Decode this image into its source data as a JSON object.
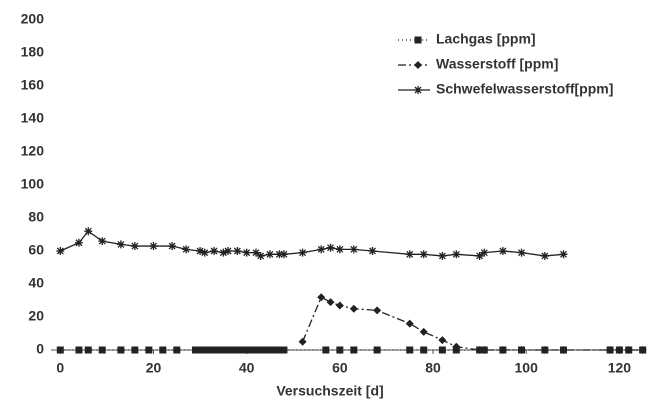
{
  "chart_data": {
    "type": "line",
    "xlabel": "Versuchszeit [d]",
    "xlim": [
      -2,
      127
    ],
    "xticks": [
      0,
      20,
      40,
      60,
      80,
      100,
      120
    ],
    "ylim": [
      0,
      200
    ],
    "yticks": [
      0,
      20,
      40,
      60,
      80,
      100,
      120,
      140,
      160,
      180,
      200
    ],
    "series": [
      {
        "name": "Lachgas [ppm]",
        "color": "#222222",
        "marker": "square",
        "dash": "1 3",
        "x": [
          0,
          4,
          6,
          9,
          13,
          16,
          19,
          22,
          25,
          29,
          30,
          31,
          32,
          33,
          34,
          35,
          36,
          37,
          38,
          39,
          40,
          41,
          42,
          43,
          44,
          45,
          46,
          47,
          48,
          57,
          60,
          63,
          68,
          75,
          78,
          82,
          85,
          90,
          91,
          95,
          99,
          104,
          108,
          118,
          120,
          122,
          125
        ],
        "values": [
          0,
          0,
          0,
          0,
          0,
          0,
          0,
          0,
          0,
          0,
          0,
          0,
          0,
          0,
          0,
          0,
          0,
          0,
          0,
          0,
          0,
          0,
          0,
          0,
          0,
          0,
          0,
          0,
          0,
          0,
          0,
          0,
          0,
          0,
          0,
          0,
          0,
          0,
          0,
          0,
          0,
          0,
          0,
          0,
          0,
          0,
          0
        ]
      },
      {
        "name": "Wasserstoff [ppm]",
        "color": "#222222",
        "marker": "diamond",
        "dash": "8 3 2 3",
        "x": [
          52,
          56,
          58,
          60,
          63,
          68,
          75,
          78,
          82,
          85,
          90,
          91,
          95,
          99,
          104,
          108,
          118,
          120,
          122,
          125
        ],
        "values": [
          5,
          32,
          29,
          27,
          25,
          24,
          16,
          11,
          6,
          2,
          0,
          0,
          0,
          0,
          0,
          0,
          0,
          0,
          0,
          0
        ]
      },
      {
        "name": "Schwefelwasserstoff[ppm]",
        "color": "#222222",
        "marker": "star",
        "dash": "none",
        "x": [
          0,
          4,
          6,
          9,
          13,
          16,
          20,
          24,
          27,
          30,
          31,
          33,
          35,
          36,
          38,
          40,
          42,
          43,
          45,
          47,
          48,
          52,
          56,
          58,
          60,
          63,
          67,
          75,
          78,
          82,
          85,
          90,
          91,
          95,
          99,
          104,
          108
        ],
        "values": [
          60,
          65,
          72,
          66,
          64,
          63,
          63,
          63,
          61,
          60,
          59,
          60,
          59,
          60,
          60,
          59,
          59,
          57,
          58,
          58,
          58,
          59,
          61,
          62,
          61,
          61,
          60,
          58,
          58,
          57,
          58,
          57,
          59,
          60,
          59,
          57,
          58
        ]
      }
    ]
  }
}
